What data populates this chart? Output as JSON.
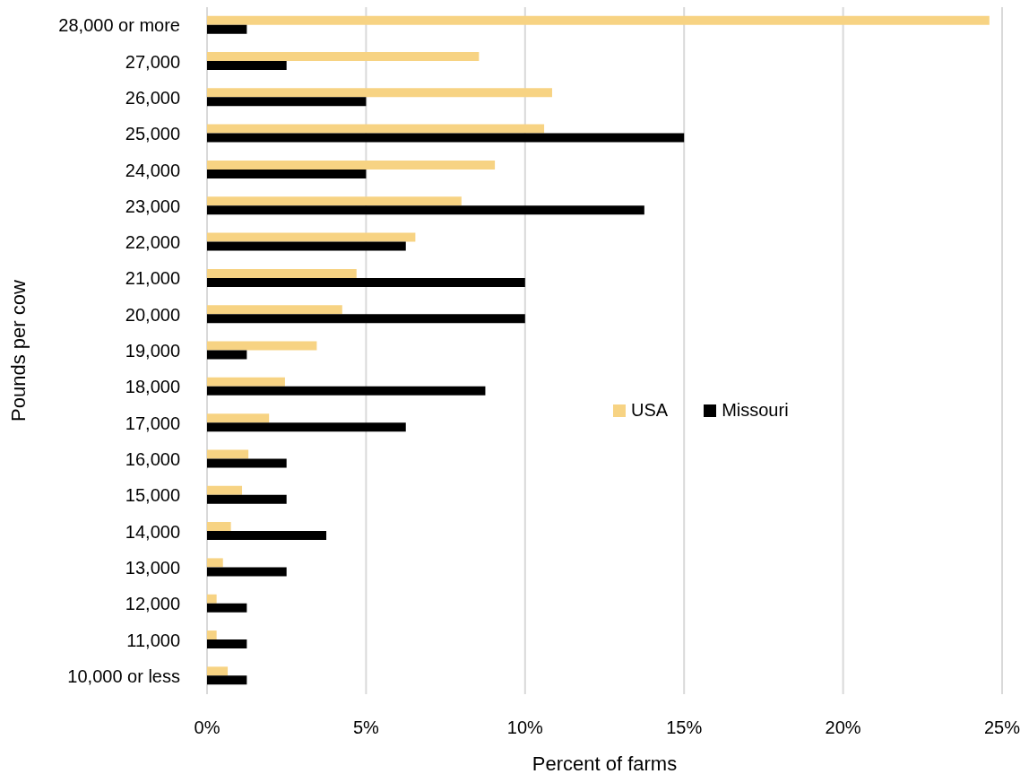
{
  "chart_data": {
    "type": "bar",
    "orientation": "horizontal",
    "xlabel": "Percent of farms",
    "ylabel": "Pounds per cow",
    "categories": [
      "28,000 or more",
      "27,000",
      "26,000",
      "25,000",
      "24,000",
      "23,000",
      "22,000",
      "21,000",
      "20,000",
      "19,000",
      "18,000",
      "17,000",
      "16,000",
      "15,000",
      "14,000",
      "13,000",
      "12,000",
      "11,000",
      "10,000 or less"
    ],
    "series": [
      {
        "name": "USA",
        "color": "#f7d383",
        "values": [
          24.6,
          8.55,
          10.85,
          10.6,
          9.05,
          8.0,
          6.55,
          4.7,
          4.25,
          3.45,
          2.45,
          1.95,
          1.3,
          1.1,
          0.75,
          0.5,
          0.3,
          0.3,
          0.65
        ]
      },
      {
        "name": "Missouri",
        "color": "#000000",
        "values": [
          1.25,
          2.5,
          5.0,
          15.0,
          5.0,
          13.75,
          6.25,
          10.0,
          10.0,
          1.25,
          8.75,
          6.25,
          2.5,
          2.5,
          3.75,
          2.5,
          1.25,
          1.25,
          1.25
        ]
      }
    ],
    "xlim": [
      0,
      25
    ],
    "xticks": [
      {
        "value": 0,
        "label": "0%"
      },
      {
        "value": 5,
        "label": "5%"
      },
      {
        "value": 10,
        "label": "10%"
      },
      {
        "value": 15,
        "label": "15%"
      },
      {
        "value": 20,
        "label": "20%"
      },
      {
        "value": 25,
        "label": "25%"
      }
    ],
    "grid": "x",
    "legend": "right"
  }
}
